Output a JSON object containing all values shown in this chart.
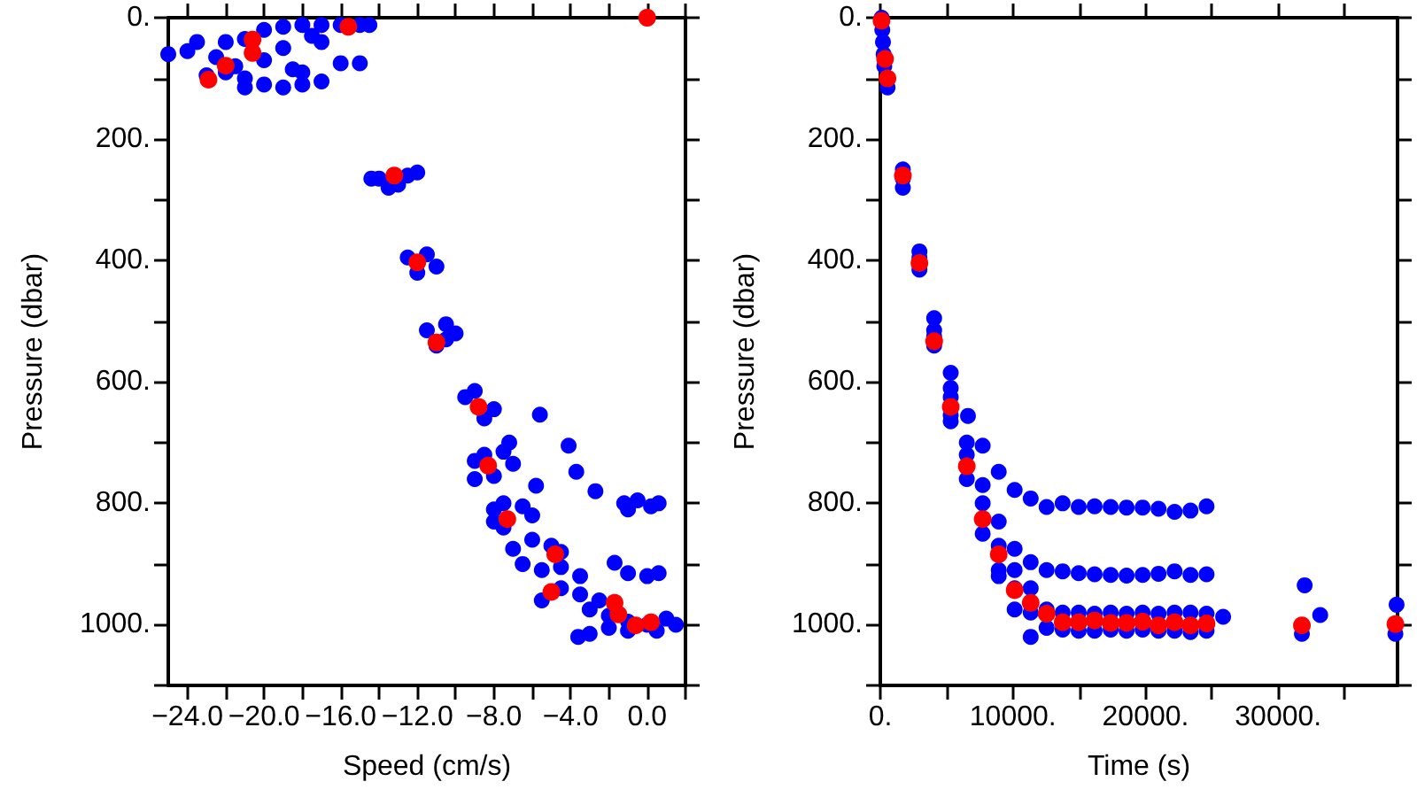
{
  "chart_data": [
    {
      "type": "scatter",
      "xlabel": "Speed (cm/s)",
      "ylabel": "Pressure (dbar)",
      "xlim": [
        -25,
        2
      ],
      "ylim": [
        1100,
        0
      ],
      "grid": false,
      "marker": "circle",
      "xticks": [
        {
          "value": -24,
          "label": "−24.0"
        },
        {
          "value": -22,
          "label": null
        },
        {
          "value": -20,
          "label": "−20.0"
        },
        {
          "value": -18,
          "label": null
        },
        {
          "value": -16,
          "label": "−16.0"
        },
        {
          "value": -14,
          "label": null
        },
        {
          "value": -12,
          "label": "−12.0"
        },
        {
          "value": -10,
          "label": null
        },
        {
          "value": -8,
          "label": "−8.0"
        },
        {
          "value": -6,
          "label": null
        },
        {
          "value": -4,
          "label": "−4.0"
        },
        {
          "value": -2,
          "label": null
        },
        {
          "value": 0,
          "label": "0.0"
        },
        {
          "value": 2,
          "label": null
        }
      ],
      "yticks": [
        {
          "value": 0,
          "label": "0."
        },
        {
          "value": 100,
          "label": null
        },
        {
          "value": 200,
          "label": "200."
        },
        {
          "value": 300,
          "label": null
        },
        {
          "value": 400,
          "label": "400."
        },
        {
          "value": 500,
          "label": null
        },
        {
          "value": 600,
          "label": "600."
        },
        {
          "value": 700,
          "label": null
        },
        {
          "value": 800,
          "label": "800."
        },
        {
          "value": 900,
          "label": null
        },
        {
          "value": 1000,
          "label": "1000."
        },
        {
          "value": 1100,
          "label": null
        }
      ],
      "series": [
        {
          "color": "#0000ff",
          "x": [
            -25,
            -24,
            -23.5,
            -22,
            -21,
            -20,
            -19,
            -18,
            -17,
            -16,
            -15,
            -14.5,
            -22.5,
            -22,
            -21,
            -20,
            -19,
            -18,
            -17,
            -18.5,
            -20,
            -21.5,
            -19,
            -17.5,
            -16,
            -15,
            -23,
            -21,
            -18,
            -17,
            -14,
            -13.5,
            -13,
            -12.5,
            -12,
            -14.4,
            -12.5,
            -11.5,
            -11,
            -12,
            -11.5,
            -10.5,
            -10,
            -11,
            -10.5,
            -9.5,
            -9,
            -8,
            -8.5,
            -5.6,
            -9,
            -8.5,
            -7.5,
            -7,
            -8,
            -9,
            -7.2,
            -4.1,
            -3.7,
            -2.7,
            -5.8,
            -8,
            -7.5,
            -6.5,
            -6,
            -7.5,
            -8,
            -7,
            -6,
            -5,
            -4.5,
            -6.5,
            -5.5,
            -4.5,
            -3.5,
            -4.5,
            -3.5,
            -2.5,
            -5.5,
            -3,
            -2,
            -1,
            0,
            1,
            1.5,
            -2,
            -1,
            0.5,
            -3,
            -1.2,
            -0.5,
            0.2,
            0.6,
            -1,
            -1.7,
            -1,
            0,
            0.6,
            -3.6
          ],
          "values": [
            60,
            55,
            40,
            40,
            35,
            20,
            15,
            12,
            12,
            12,
            12,
            12,
            65,
            90,
            100,
            110,
            115,
            110,
            105,
            85,
            70,
            80,
            50,
            30,
            75,
            75,
            95,
            115,
            90,
            40,
            265,
            280,
            275,
            260,
            255,
            265,
            395,
            390,
            410,
            420,
            515,
            505,
            520,
            540,
            530,
            625,
            615,
            645,
            660,
            654,
            730,
            720,
            715,
            735,
            755,
            760,
            700,
            705,
            748,
            780,
            771,
            810,
            800,
            805,
            820,
            840,
            830,
            875,
            860,
            870,
            880,
            900,
            910,
            905,
            920,
            940,
            950,
            960,
            960,
            975,
            985,
            995,
            1000,
            990,
            1000,
            1005,
            1010,
            1010,
            1015,
            800,
            795,
            805,
            800,
            810,
            898,
            915,
            920,
            915,
            1020
          ]
        },
        {
          "color": "#ff0000",
          "x": [
            -15.6,
            0,
            -20.6,
            -20.6,
            -22,
            -22.9,
            -13.2,
            -12,
            -11,
            -8.8,
            -8.3,
            -7.3,
            -4.8,
            -5,
            -1.7,
            -1.5,
            -0.6,
            0.2
          ],
          "values": [
            15,
            0,
            36,
            58,
            79,
            102,
            260,
            403,
            535,
            641,
            738,
            826,
            884,
            946,
            964,
            983,
            1001,
            996
          ]
        }
      ]
    },
    {
      "type": "scatter",
      "xlabel": "Time (s)",
      "ylabel": "Pressure (dbar)",
      "xlim": [
        0,
        39000
      ],
      "ylim": [
        1100,
        0
      ],
      "grid": false,
      "marker": "circle",
      "xticks": [
        {
          "value": 0,
          "label": "0."
        },
        {
          "value": 5000,
          "label": null
        },
        {
          "value": 10000,
          "label": "10000."
        },
        {
          "value": 15000,
          "label": null
        },
        {
          "value": 20000,
          "label": "20000."
        },
        {
          "value": 25000,
          "label": null
        },
        {
          "value": 30000,
          "label": "30000."
        },
        {
          "value": 35000,
          "label": null
        }
      ],
      "yticks": [
        {
          "value": 0,
          "label": "0."
        },
        {
          "value": 100,
          "label": null
        },
        {
          "value": 200,
          "label": "200."
        },
        {
          "value": 300,
          "label": null
        },
        {
          "value": 400,
          "label": "400."
        },
        {
          "value": 500,
          "label": null
        },
        {
          "value": 600,
          "label": "600."
        },
        {
          "value": 700,
          "label": null
        },
        {
          "value": 800,
          "label": "800."
        },
        {
          "value": 900,
          "label": null
        },
        {
          "value": 1000,
          "label": "1000."
        },
        {
          "value": 1100,
          "label": null
        }
      ],
      "series": [
        {
          "color": "#0000ff",
          "x": [
            100,
            150,
            200,
            250,
            300,
            550,
            1700,
            1700,
            1700,
            2950,
            2950,
            2950,
            4060,
            4060,
            4060,
            4060,
            5310,
            5310,
            5310,
            5310,
            5310,
            6610,
            6520,
            6520,
            6520,
            7720,
            7720,
            7720,
            7720,
            8930,
            8930,
            8930,
            8930,
            8930,
            10130,
            10130,
            10130,
            10130,
            10130,
            11340,
            11340,
            11340,
            11340,
            11340,
            12540,
            13750,
            14960,
            16160,
            17370,
            18570,
            19780,
            20980,
            22190,
            23390,
            24600,
            12540,
            13750,
            14960,
            16160,
            17370,
            18570,
            19780,
            20980,
            22190,
            23390,
            24600,
            12540,
            13750,
            14960,
            16160,
            17370,
            18570,
            19780,
            20980,
            22190,
            23390,
            24600,
            12540,
            13750,
            14960,
            16160,
            17370,
            18570,
            19780,
            20980,
            22190,
            23390,
            24600,
            25850,
            32000,
            33170,
            31790,
            38930,
            38840
          ],
          "values": [
            0,
            20,
            40,
            60,
            80,
            115,
            250,
            265,
            280,
            385,
            395,
            415,
            495,
            515,
            525,
            540,
            585,
            610,
            625,
            655,
            665,
            656,
            700,
            720,
            760,
            705,
            770,
            800,
            850,
            748,
            830,
            870,
            910,
            920,
            778,
            875,
            910,
            940,
            975,
            792,
            897,
            940,
            980,
            1020,
            806,
            800,
            806,
            805,
            806,
            807,
            807,
            809,
            814,
            812,
            805,
            910,
            912,
            915,
            917,
            918,
            919,
            918,
            916,
            912,
            918,
            917,
            975,
            980,
            980,
            982,
            980,
            982,
            980,
            982,
            980,
            980,
            982,
            1005,
            1008,
            1010,
            1010,
            1008,
            1010,
            1008,
            1010,
            1010,
            1012,
            1010,
            987,
            935,
            984,
            1015,
            967,
            1015
          ]
        },
        {
          "color": "#ff0000",
          "x": [
            90,
            360,
            540,
            1700,
            2950,
            4060,
            5310,
            6520,
            7720,
            8930,
            10130,
            11340,
            12540,
            13750,
            14960,
            16160,
            17370,
            18570,
            19780,
            20980,
            22190,
            23390,
            24600,
            31790,
            38840
          ],
          "values": [
            5,
            68,
            100,
            260,
            404,
            533,
            641,
            739,
            826,
            884,
            943,
            964,
            982,
            996,
            996,
            993,
            997,
            997,
            995,
            1001,
            996,
            1001,
            998,
            1001,
            999
          ]
        }
      ]
    }
  ]
}
